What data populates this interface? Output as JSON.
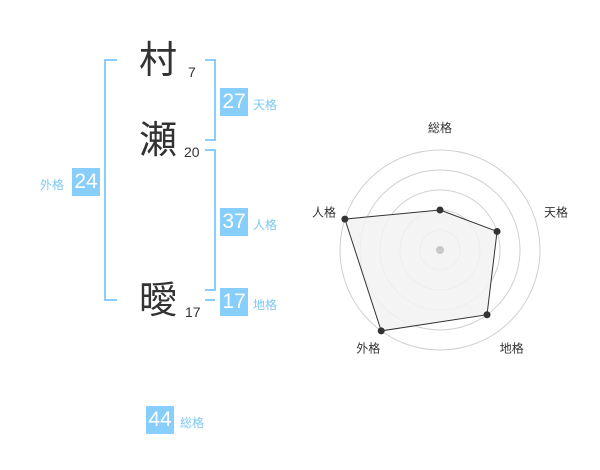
{
  "name": {
    "chars": [
      {
        "char": "村",
        "strokes": "7"
      },
      {
        "char": "瀬",
        "strokes": "20"
      },
      {
        "char": "曖",
        "strokes": "17"
      }
    ]
  },
  "fortunes": {
    "tenkaku": {
      "value": "27",
      "label": "天格"
    },
    "jinkaku": {
      "value": "37",
      "label": "人格"
    },
    "chikaku": {
      "value": "17",
      "label": "地格"
    },
    "gaikaku": {
      "value": "24",
      "label": "外格"
    },
    "soukaku": {
      "value": "44",
      "label": "総格"
    }
  },
  "colors": {
    "accent": "#87cefa",
    "label": "#7cc8f5",
    "bracket": "#87cefa"
  },
  "chart_data": {
    "type": "radar",
    "axes": [
      "総格",
      "天格",
      "地格",
      "外格",
      "人格"
    ],
    "values": [
      2,
      3,
      4,
      5,
      5
    ],
    "range": [
      0,
      5
    ],
    "rings": 5,
    "fill": "#f2f2f2",
    "stroke": "#333333"
  }
}
